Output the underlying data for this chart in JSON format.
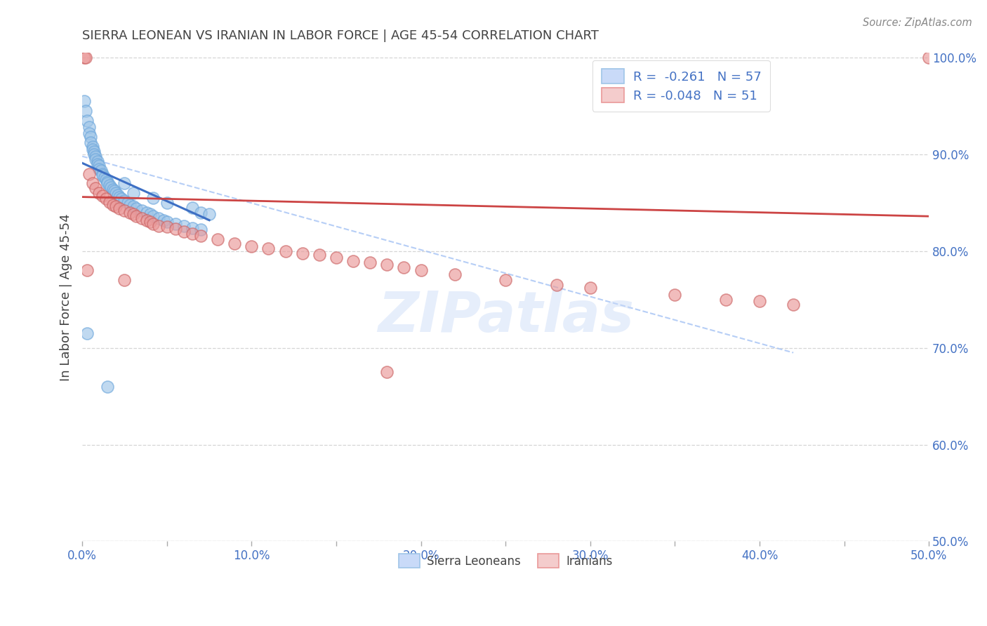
{
  "title": "SIERRA LEONEAN VS IRANIAN IN LABOR FORCE | AGE 45-54 CORRELATION CHART",
  "source": "Source: ZipAtlas.com",
  "ylabel": "In Labor Force | Age 45-54",
  "xlim": [
    0.0,
    0.5
  ],
  "ylim": [
    0.5,
    1.005
  ],
  "xticklabels": [
    "0.0%",
    "",
    "10.0%",
    "",
    "20.0%",
    "",
    "30.0%",
    "",
    "40.0%",
    "",
    "50.0%"
  ],
  "xtick_vals": [
    0.0,
    0.05,
    0.1,
    0.15,
    0.2,
    0.25,
    0.3,
    0.35,
    0.4,
    0.45,
    0.5
  ],
  "ytick_vals": [
    0.5,
    0.6,
    0.7,
    0.8,
    0.9,
    1.0
  ],
  "yticklabels_right": [
    "50.0%",
    "60.0%",
    "70.0%",
    "80.0%",
    "90.0%",
    "100.0%"
  ],
  "blue_color": "#9fc5e8",
  "pink_color": "#ea9999",
  "blue_line_color": "#3d6fc4",
  "pink_line_color": "#cc4444",
  "title_color": "#434343",
  "axis_label_color": "#434343",
  "tick_color": "#4472c4",
  "grid_color": "#cccccc",
  "legend_R_blue": "R =  -0.261",
  "legend_N_blue": "N = 57",
  "legend_R_pink": "R = -0.048",
  "legend_N_pink": "N = 51",
  "blue_x": [
    0.001,
    0.002,
    0.003,
    0.004,
    0.004,
    0.005,
    0.005,
    0.006,
    0.006,
    0.007,
    0.007,
    0.008,
    0.008,
    0.009,
    0.009,
    0.01,
    0.01,
    0.011,
    0.012,
    0.012,
    0.013,
    0.014,
    0.015,
    0.015,
    0.016,
    0.017,
    0.018,
    0.019,
    0.02,
    0.021,
    0.022,
    0.023,
    0.025,
    0.027,
    0.028,
    0.03,
    0.032,
    0.035,
    0.038,
    0.04,
    0.042,
    0.045,
    0.048,
    0.05,
    0.055,
    0.06,
    0.065,
    0.07,
    0.003,
    0.015,
    0.025,
    0.03,
    0.042,
    0.05,
    0.065,
    0.07,
    0.075
  ],
  "blue_y": [
    0.955,
    0.945,
    0.935,
    0.928,
    0.922,
    0.918,
    0.912,
    0.908,
    0.905,
    0.903,
    0.9,
    0.898,
    0.895,
    0.893,
    0.89,
    0.888,
    0.885,
    0.883,
    0.88,
    0.878,
    0.876,
    0.874,
    0.872,
    0.87,
    0.868,
    0.866,
    0.864,
    0.862,
    0.86,
    0.858,
    0.856,
    0.854,
    0.852,
    0.85,
    0.848,
    0.846,
    0.844,
    0.842,
    0.84,
    0.838,
    0.836,
    0.834,
    0.832,
    0.83,
    0.828,
    0.826,
    0.824,
    0.822,
    0.715,
    0.66,
    0.87,
    0.86,
    0.855,
    0.85,
    0.845,
    0.84,
    0.838
  ],
  "pink_x": [
    0.001,
    0.002,
    0.004,
    0.006,
    0.008,
    0.01,
    0.012,
    0.014,
    0.016,
    0.018,
    0.02,
    0.022,
    0.025,
    0.028,
    0.03,
    0.032,
    0.035,
    0.038,
    0.04,
    0.042,
    0.045,
    0.05,
    0.055,
    0.06,
    0.065,
    0.07,
    0.08,
    0.09,
    0.1,
    0.11,
    0.12,
    0.13,
    0.14,
    0.15,
    0.16,
    0.17,
    0.18,
    0.19,
    0.2,
    0.22,
    0.25,
    0.28,
    0.3,
    0.35,
    0.38,
    0.4,
    0.42,
    0.5,
    0.003,
    0.025,
    0.18
  ],
  "pink_y": [
    1.0,
    1.0,
    0.88,
    0.87,
    0.865,
    0.86,
    0.857,
    0.854,
    0.851,
    0.848,
    0.846,
    0.844,
    0.842,
    0.84,
    0.838,
    0.836,
    0.834,
    0.832,
    0.83,
    0.828,
    0.826,
    0.825,
    0.823,
    0.82,
    0.818,
    0.816,
    0.812,
    0.808,
    0.805,
    0.803,
    0.8,
    0.798,
    0.796,
    0.793,
    0.79,
    0.788,
    0.786,
    0.783,
    0.78,
    0.776,
    0.77,
    0.765,
    0.762,
    0.755,
    0.75,
    0.748,
    0.745,
    1.0,
    0.78,
    0.77,
    0.675
  ],
  "blue_trend_x": [
    0.0,
    0.075
  ],
  "blue_trend_y": [
    0.891,
    0.832
  ],
  "pink_trend_x": [
    0.0,
    0.5
  ],
  "pink_trend_y": [
    0.856,
    0.836
  ],
  "dashed_trend_x": [
    0.0,
    0.42
  ],
  "dashed_trend_y": [
    0.898,
    0.695
  ]
}
